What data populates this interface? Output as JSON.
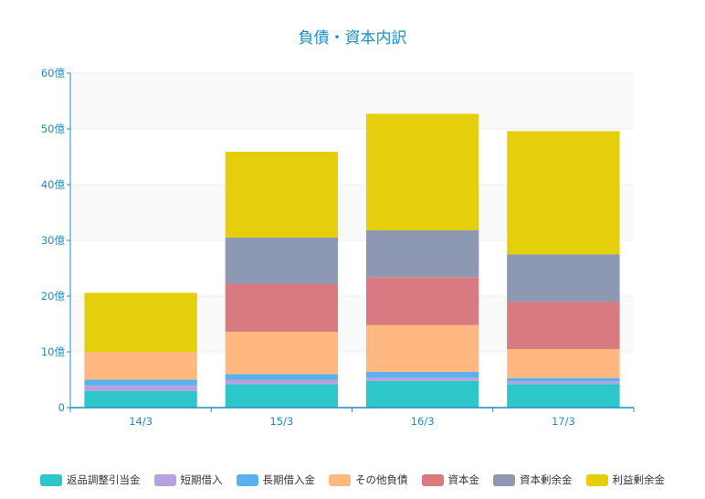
{
  "chart_data": {
    "type": "bar",
    "stacked": true,
    "title": "負債・資本内訳",
    "xlabel": "",
    "ylabel": "",
    "categories": [
      "14/3",
      "15/3",
      "16/3",
      "17/3"
    ],
    "ylim": [
      0,
      60
    ],
    "yticks": [
      0,
      10,
      20,
      30,
      40,
      50,
      60
    ],
    "ytick_labels": [
      "0",
      "10億",
      "20億",
      "30億",
      "40億",
      "50億",
      "60億"
    ],
    "grid": true,
    "legend_position": "bottom",
    "series": [
      {
        "name": "返品調整引当金",
        "color": "#2ec7c9",
        "values": [
          3.0,
          4.2,
          4.8,
          4.2
        ]
      },
      {
        "name": "短期借入",
        "color": "#b6a2de",
        "values": [
          1.0,
          0.8,
          0.6,
          0.5
        ]
      },
      {
        "name": "長期借入金",
        "color": "#5ab1ef",
        "values": [
          1.0,
          1.0,
          1.0,
          0.6
        ]
      },
      {
        "name": "その他負債",
        "color": "#ffb980",
        "values": [
          5.0,
          7.6,
          8.4,
          5.2
        ]
      },
      {
        "name": "資本金",
        "color": "#d87a80",
        "values": [
          0,
          8.6,
          8.6,
          8.5
        ]
      },
      {
        "name": "資本剰余金",
        "color": "#8d98b3",
        "values": [
          0,
          8.3,
          8.4,
          8.5
        ]
      },
      {
        "name": "利益剰余金",
        "color": "#e5cf0d",
        "values": [
          10.6,
          15.4,
          20.9,
          22.1
        ]
      }
    ]
  }
}
